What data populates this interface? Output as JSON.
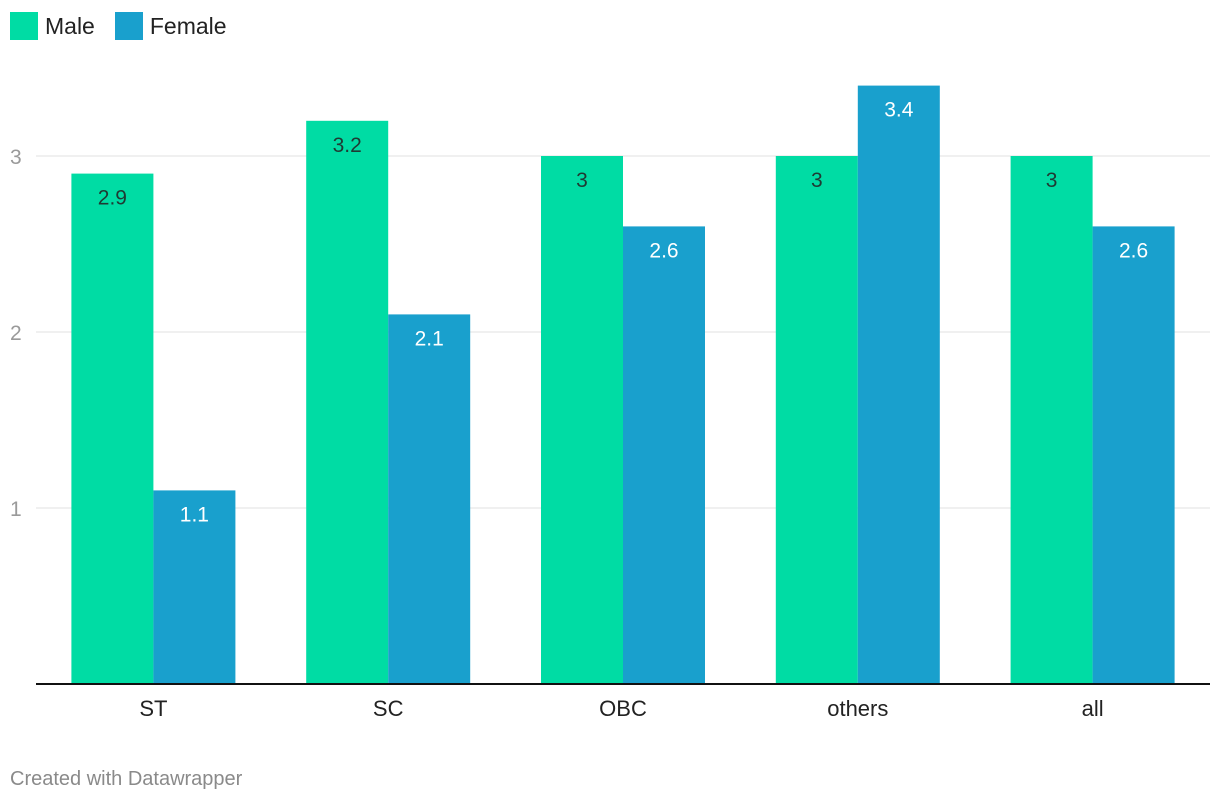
{
  "colors": {
    "male": "#00dca4",
    "female": "#19a0cd",
    "grid": "#e2e2e2",
    "axis": "#111111"
  },
  "legend": [
    {
      "label": "Male",
      "color": "#00dca4"
    },
    {
      "label": "Female",
      "color": "#19a0cd"
    }
  ],
  "footer": "Created with Datawrapper",
  "chart_data": {
    "type": "bar",
    "categories": [
      "ST",
      "SC",
      "OBC",
      "others",
      "all"
    ],
    "series": [
      {
        "name": "Male",
        "values": [
          2.9,
          3.2,
          3,
          3,
          3
        ]
      },
      {
        "name": "Female",
        "values": [
          1.1,
          2.1,
          2.6,
          3.4,
          2.6
        ]
      }
    ],
    "data_labels": [
      [
        "2.9",
        "3.2",
        "3",
        "3",
        "3"
      ],
      [
        "1.1",
        "2.1",
        "2.6",
        "3.4",
        "2.6"
      ]
    ],
    "yticks": [
      1,
      2,
      3
    ],
    "ylim": [
      0,
      3.4
    ],
    "grid": true,
    "legend_position": "top-left"
  }
}
